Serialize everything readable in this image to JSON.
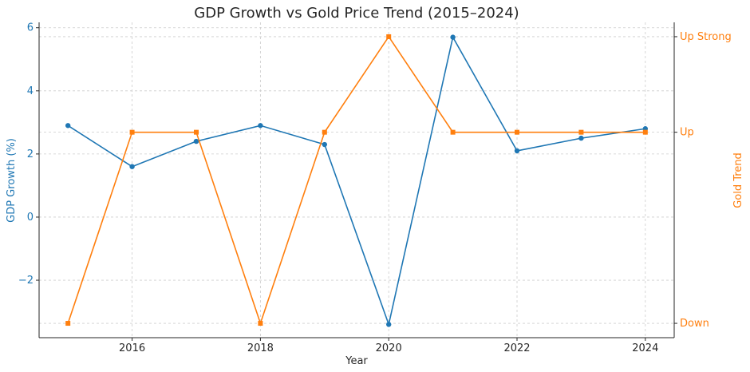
{
  "chart_data": {
    "type": "line",
    "title": "GDP Growth vs Gold Price Trend (2015–2024)",
    "xlabel": "Year",
    "ylabel_left": "GDP Growth (%)",
    "ylabel_right": "Gold Trend",
    "x": [
      2015,
      2016,
      2017,
      2018,
      2019,
      2020,
      2021,
      2022,
      2023,
      2024
    ],
    "xticks": [
      2016,
      2018,
      2020,
      2022,
      2024
    ],
    "xlim": [
      2014.55,
      2024.45
    ],
    "ylim_left": [
      -3.82,
      6.17
    ],
    "yticks_left": [
      -2,
      0,
      2,
      4,
      6
    ],
    "ytick_labels_left": [
      "−2",
      "0",
      "2",
      "4",
      "6"
    ],
    "right_axis_categories": [
      "Down",
      "Up",
      "Up Strong"
    ],
    "right_axis_levels": [
      0,
      2,
      3
    ],
    "ylim_right": [
      -0.15,
      3.15
    ],
    "grid": true,
    "colors": {
      "gdp": "#1f77b4",
      "gold": "#ff7f0e",
      "text": "#262626"
    },
    "series": [
      {
        "axis": "left",
        "marker": "circle",
        "values": [
          2.9,
          1.6,
          2.4,
          2.9,
          2.3,
          -3.4,
          5.7,
          2.1,
          2.5,
          2.8
        ]
      },
      {
        "axis": "right",
        "marker": "square",
        "values": [
          "Down",
          "Up",
          "Up",
          "Down",
          "Up",
          "Up Strong",
          "Up",
          "Up",
          "Up",
          "Up"
        ]
      }
    ]
  }
}
